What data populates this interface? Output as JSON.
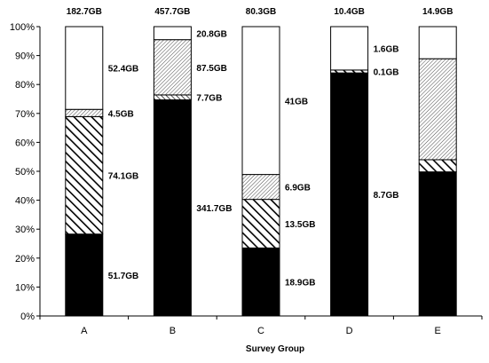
{
  "chart_data": {
    "type": "bar",
    "stacked": true,
    "normalized_percent": true,
    "title": "",
    "xlabel": "Survey Group",
    "ylabel": "",
    "ylim": [
      0,
      100
    ],
    "y_ticks": [
      "0%",
      "10%",
      "20%",
      "30%",
      "40%",
      "50%",
      "60%",
      "70%",
      "80%",
      "90%",
      "100%"
    ],
    "categories": [
      "A",
      "B",
      "C",
      "D",
      "E"
    ],
    "totals": [
      "182.7GB",
      "457.7GB",
      "80.3GB",
      "10.4GB",
      "14.9GB"
    ],
    "grid": false,
    "legend": "none",
    "series": [
      {
        "fill": "solid-black",
        "values": [
          28.3,
          74.7,
          23.5,
          84.0,
          49.8
        ],
        "labels": [
          "51.7GB",
          "341.7GB",
          "18.9GB",
          "8.7GB",
          ""
        ]
      },
      {
        "fill": "thin-diagonal",
        "values": [
          0,
          1.7,
          0,
          0,
          0
        ],
        "labels": [
          "",
          "7.7GB",
          "",
          "",
          ""
        ]
      },
      {
        "fill": "wide-diagonal",
        "values": [
          40.6,
          0,
          16.8,
          1.0,
          4.2
        ],
        "labels": [
          "74.1GB",
          "",
          "13.5GB",
          "0.1GB",
          ""
        ]
      },
      {
        "fill": "fine-hatch",
        "values": [
          2.5,
          19.1,
          8.6,
          0,
          34.9
        ],
        "labels": [
          "4.5GB",
          "87.5GB",
          "6.9GB",
          "",
          ""
        ]
      },
      {
        "fill": "white",
        "values": [
          28.6,
          4.5,
          51.1,
          15.0,
          11.1
        ],
        "labels": [
          "52.4GB",
          "20.8GB",
          "41GB",
          "1.6GB",
          ""
        ]
      }
    ]
  }
}
